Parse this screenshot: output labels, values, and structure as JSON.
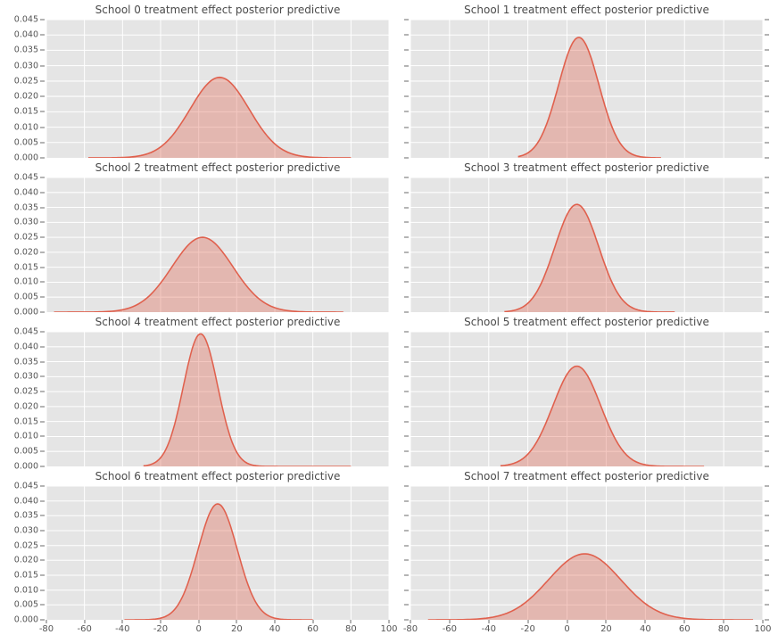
{
  "figure": {
    "kind": "matplotlib-ggplot-style 4x2 grid of KDE posterior predictive plots",
    "colors": {
      "line": "#e0604d",
      "fill_opacity": 0.35,
      "panel": "#e5e5e5",
      "grid": "#ffffff",
      "tick": "#6a6a6a",
      "text": "#555555",
      "title_text": "#4a4a4a",
      "background": "#ffffff"
    }
  },
  "chart_data": {
    "type": "area",
    "subtype": "kde-density-grid",
    "grid": true,
    "legend": "none",
    "xlim": [
      -80,
      100
    ],
    "ylim": [
      0,
      0.045
    ],
    "x_ticks": [
      -80,
      -60,
      -40,
      -20,
      0,
      20,
      40,
      60,
      80,
      100
    ],
    "y_ticks": [
      0.0,
      0.005,
      0.01,
      0.015,
      0.02,
      0.025,
      0.03,
      0.035,
      0.04,
      0.045
    ],
    "xlabel": "",
    "ylabel": "",
    "subplots": [
      {
        "title": "School 0 treatment effect posterior predictive",
        "mean": 11,
        "sd": 15.5,
        "peak": 0.0262,
        "x_start": -58,
        "x_end": 80
      },
      {
        "title": "School 1 treatment effect posterior predictive",
        "mean": 6,
        "sd": 10.3,
        "peak": 0.0392,
        "x_start": -25,
        "x_end": 48
      },
      {
        "title": "School 2 treatment effect posterior predictive",
        "mean": 2,
        "sd": 16.0,
        "peak": 0.025,
        "x_start": -76,
        "x_end": 76
      },
      {
        "title": "School 3 treatment effect posterior predictive",
        "mean": 5,
        "sd": 11.2,
        "peak": 0.036,
        "x_start": -32,
        "x_end": 55
      },
      {
        "title": "School 4 treatment effect posterior predictive",
        "mean": 1,
        "sd": 9.0,
        "peak": 0.0443,
        "x_start": -29,
        "x_end": 80
      },
      {
        "title": "School 5 treatment effect posterior predictive",
        "mean": 5,
        "sd": 12.2,
        "peak": 0.0335,
        "x_start": -34,
        "x_end": 70
      },
      {
        "title": "School 6 treatment effect posterior predictive",
        "mean": 10,
        "sd": 10.3,
        "peak": 0.039,
        "x_start": -39,
        "x_end": 60
      },
      {
        "title": "School 7 treatment effect posterior predictive",
        "mean": 9,
        "sd": 18.5,
        "peak": 0.0222,
        "x_start": -71,
        "x_end": 95
      }
    ]
  }
}
